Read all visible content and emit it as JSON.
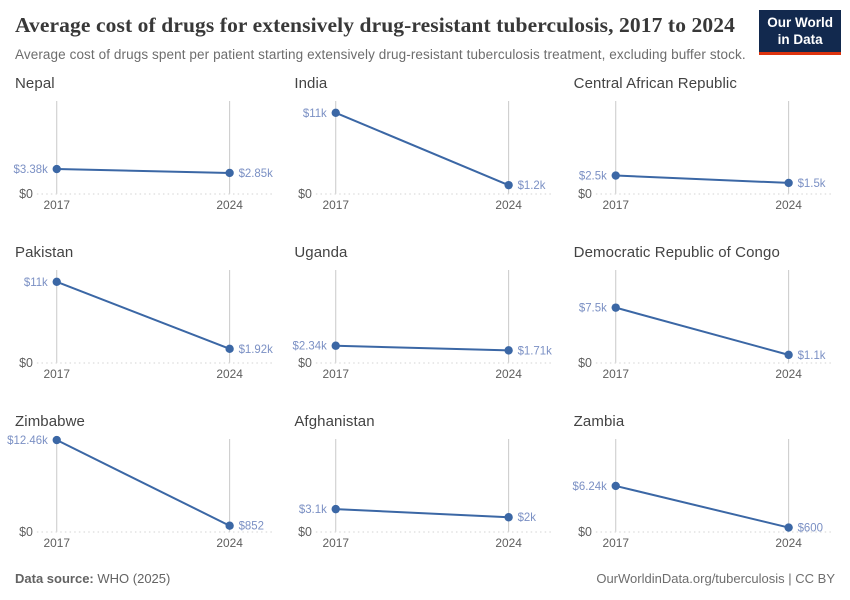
{
  "header": {
    "title": "Average cost of drugs for extensively drug-resistant tuberculosis, 2017 to 2024",
    "subtitle": "Average cost of drugs spent per patient starting extensively drug-resistant tuberculosis treatment, excluding buffer stock.",
    "logo": {
      "line1": "Our World",
      "line2": "in Data"
    }
  },
  "chart_data": {
    "type": "line",
    "x": [
      2017,
      2024
    ],
    "x_tick_labels": [
      "2017",
      "2024"
    ],
    "shared_ylim": [
      0,
      12600
    ],
    "y_zero_label": "$0",
    "grid": "zero-baseline-dotted",
    "legend_position": "none",
    "facets": [
      {
        "country": "Nepal",
        "values": [
          3380,
          2850
        ],
        "labels": [
          "$3.38k",
          "$2.85k"
        ]
      },
      {
        "country": "India",
        "values": [
          11000,
          1200
        ],
        "labels": [
          "$11k",
          "$1.2k"
        ]
      },
      {
        "country": "Central African Republic",
        "values": [
          2500,
          1500
        ],
        "labels": [
          "$2.5k",
          "$1.5k"
        ]
      },
      {
        "country": "Pakistan",
        "values": [
          11000,
          1920
        ],
        "labels": [
          "$11k",
          "$1.92k"
        ]
      },
      {
        "country": "Uganda",
        "values": [
          2340,
          1710
        ],
        "labels": [
          "$2.34k",
          "$1.71k"
        ]
      },
      {
        "country": "Democratic Republic of Congo",
        "values": [
          7500,
          1100
        ],
        "labels": [
          "$7.5k",
          "$1.1k"
        ]
      },
      {
        "country": "Zimbabwe",
        "values": [
          12460,
          852
        ],
        "labels": [
          "$12.46k",
          "$852"
        ]
      },
      {
        "country": "Afghanistan",
        "values": [
          3100,
          2000
        ],
        "labels": [
          "$3.1k",
          "$2k"
        ]
      },
      {
        "country": "Zambia",
        "values": [
          6240,
          600
        ],
        "labels": [
          "$6.24k",
          "$600"
        ]
      }
    ]
  },
  "footer": {
    "source_label": "Data source:",
    "source_value": "WHO (2025)",
    "link": "OurWorldinData.org/tuberculosis | CC BY"
  },
  "colors": {
    "line": "#3b67a5",
    "value_label": "#7b90c4",
    "gridline": "#c9c9c9",
    "baseline": "#dcdcdc",
    "axis_text": "#5e5e5e",
    "logo_bg": "#12294e",
    "logo_red": "#dd330e"
  }
}
